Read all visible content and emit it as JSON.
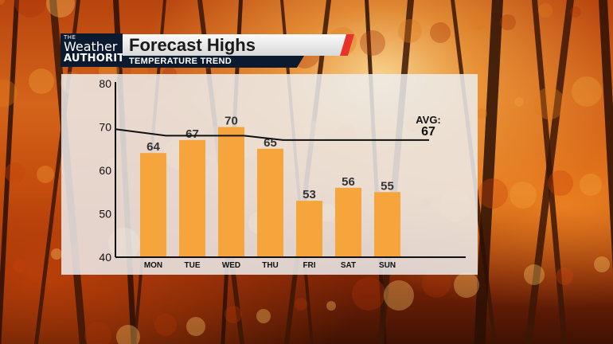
{
  "brand": {
    "line1": "THE",
    "line2": "Weather",
    "line3": "AUTHORITY"
  },
  "header": {
    "title": "Forecast Highs",
    "subtitle": "TEMPERATURE TREND"
  },
  "colors": {
    "bar": "#f5a53c",
    "panel": "#ececec",
    "accent": "#e8332a",
    "navy": "#0b1a2e"
  },
  "chart_data": {
    "type": "bar",
    "title": "Forecast Highs",
    "subtitle": "TEMPERATURE TREND",
    "categories": [
      "MON",
      "TUE",
      "WED",
      "THU",
      "FRI",
      "SAT",
      "SUN"
    ],
    "values": [
      64,
      67,
      70,
      65,
      53,
      56,
      55
    ],
    "ylim": [
      40,
      80
    ],
    "yticks": [
      40,
      50,
      60,
      70,
      80
    ],
    "grid": false,
    "average_line": {
      "label": "AVG:",
      "value": "67",
      "x": [
        0,
        1,
        2,
        3,
        4,
        5,
        6,
        7
      ],
      "y": [
        69.5,
        68,
        68,
        68,
        67,
        67,
        67,
        67
      ]
    }
  }
}
